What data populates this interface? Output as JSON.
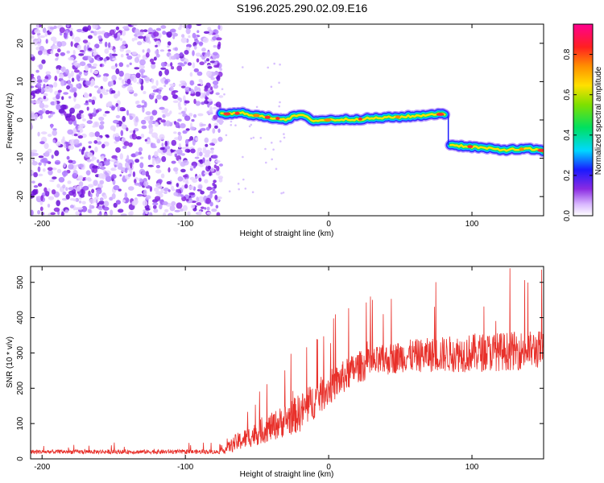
{
  "title": "S196.2025.290.02.09.E16",
  "colors": {
    "snr_line": "#e8302a",
    "noise_points": "#7a1fe0",
    "axis": "#000000"
  },
  "chart_data": [
    {
      "type": "heatmap",
      "xlabel": "Height of straight line (km)",
      "ylabel": "Frequency (Hz)",
      "xlim": [
        -208,
        150
      ],
      "ylim": [
        -25,
        25
      ],
      "x_ticks": [
        -200,
        -100,
        0,
        100
      ],
      "x_tick_labels": [
        "-200",
        "-100",
        "0",
        "100"
      ],
      "y_ticks": [
        -20,
        -10,
        0,
        10,
        20
      ],
      "y_tick_labels": [
        "-20",
        "-10",
        "0",
        "10",
        "20"
      ],
      "colorbar": {
        "label": "Normalized spectral amplitude",
        "range": [
          0.0,
          0.95
        ],
        "ticks": [
          0.0,
          0.2,
          0.4,
          0.6,
          0.8
        ],
        "tick_labels": [
          "0.0",
          "0.2",
          "0.4",
          "0.6",
          "0.8"
        ],
        "colormap": "rainbow (violet-blue-cyan-green-yellow-orange-red-magenta)"
      },
      "noise_region": {
        "x_range": [
          -208,
          -75
        ],
        "level": 0.15
      },
      "ridge": [
        {
          "x": -75,
          "y": 1.5
        },
        {
          "x": -60,
          "y": 1.8
        },
        {
          "x": -45,
          "y": 0.8
        },
        {
          "x": -30,
          "y": 0.2
        },
        {
          "x": -20,
          "y": 1.4
        },
        {
          "x": -10,
          "y": -0.2
        },
        {
          "x": 0,
          "y": 0.0
        },
        {
          "x": 20,
          "y": 0.2
        },
        {
          "x": 40,
          "y": 0.6
        },
        {
          "x": 60,
          "y": 1.0
        },
        {
          "x": 75,
          "y": 1.6
        },
        {
          "x": 82,
          "y": 1.3
        },
        {
          "x": 85,
          "y": -6.5
        },
        {
          "x": 100,
          "y": -7.0
        },
        {
          "x": 120,
          "y": -7.8
        },
        {
          "x": 140,
          "y": -7.6
        },
        {
          "x": 150,
          "y": -8.0
        }
      ]
    },
    {
      "type": "line",
      "xlabel": "Height of straight line (km)",
      "ylabel": "SNR (10 * v/v)",
      "xlim": [
        -208,
        150
      ],
      "ylim": [
        0,
        545
      ],
      "x_ticks": [
        -200,
        -100,
        0,
        100
      ],
      "x_tick_labels": [
        "-200",
        "-100",
        "0",
        "100"
      ],
      "y_ticks": [
        0,
        100,
        200,
        300,
        400,
        500
      ],
      "y_tick_labels": [
        "0",
        "100",
        "200",
        "300",
        "400",
        "500"
      ],
      "series": [
        {
          "envelope": [
            {
              "x": -208,
              "mean": 20,
              "spread": 12
            },
            {
              "x": -75,
              "mean": 20,
              "spread": 12
            },
            {
              "x": -65,
              "mean": 45,
              "spread": 50
            },
            {
              "x": -40,
              "mean": 90,
              "spread": 80
            },
            {
              "x": -20,
              "mean": 130,
              "spread": 110
            },
            {
              "x": 0,
              "mean": 200,
              "spread": 100
            },
            {
              "x": 20,
              "mean": 260,
              "spread": 90
            },
            {
              "x": 50,
              "mean": 290,
              "spread": 90
            },
            {
              "x": 100,
              "mean": 300,
              "spread": 110
            },
            {
              "x": 150,
              "mean": 310,
              "spread": 110
            }
          ],
          "peak_max": 540
        }
      ]
    }
  ]
}
